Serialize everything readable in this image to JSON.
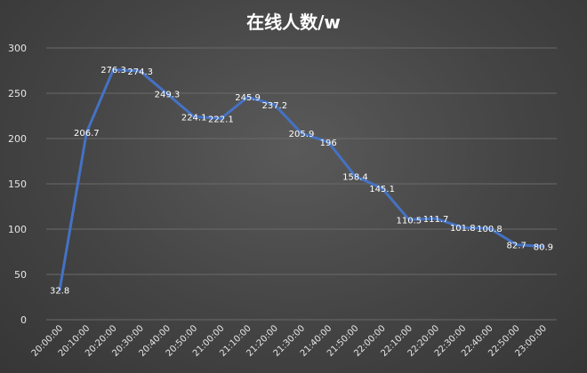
{
  "chart_data": {
    "type": "line",
    "title": "在线人数/w",
    "xlabel": "",
    "ylabel": "",
    "ylim": [
      0,
      300
    ],
    "yticks": [
      0,
      50,
      100,
      150,
      200,
      250,
      300
    ],
    "grid": true,
    "legend": "none",
    "categories": [
      "20:00:00",
      "20:10:00",
      "20:20:00",
      "20:30:00",
      "20:40:00",
      "20:50:00",
      "21:00:00",
      "21:10:00",
      "21:20:00",
      "21:30:00",
      "21:40:00",
      "21:50:00",
      "22:00:00",
      "22:10:00",
      "22:20:00",
      "22:30:00",
      "22:40:00",
      "22:50:00",
      "23:00:00"
    ],
    "values": [
      32.8,
      206.7,
      276.3,
      274.3,
      249.3,
      224.1,
      222.1,
      245.9,
      237.2,
      205.9,
      196,
      158.4,
      145.1,
      110.5,
      111.7,
      101.8,
      100.8,
      82.7,
      80.9
    ],
    "labels": [
      "32.8",
      "206.7",
      "276.3",
      "274.3",
      "249.3",
      "224.1",
      "222.1",
      "245.9",
      "237.2",
      "205.9",
      "196",
      "158.4",
      "145.1",
      "110.5",
      "111.7",
      "101.8",
      "100.8",
      "82.7",
      "80.9"
    ],
    "colors": {
      "line": "#4472c4",
      "background": "#444444",
      "grid": "#6a6a6a",
      "text": "#e6e6e6"
    }
  }
}
